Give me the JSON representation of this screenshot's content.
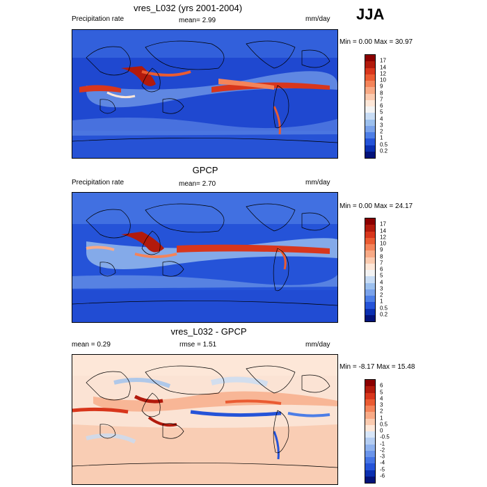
{
  "season": "JJA",
  "panels": [
    {
      "title": "vres_L032 (yrs 2001-2004)",
      "left_label": "Precipitation rate",
      "center_label": "mean=  2.99",
      "units": "mm/day",
      "minmax": "Min =   0.00 Max =  30.97",
      "kind": "abs"
    },
    {
      "title": "GPCP",
      "left_label": "Precipitation rate",
      "center_label": "mean=  2.70",
      "units": "mm/day",
      "minmax": "Min =   0.00 Max =  24.17",
      "kind": "abs"
    },
    {
      "title": "vres_L032 - GPCP",
      "left_label": "mean =   0.29",
      "center_label": "rmse =   1.51",
      "units": "mm/day",
      "minmax": "Min =  -8.17 Max =  15.48",
      "kind": "diff"
    }
  ],
  "colorbars": {
    "abs": {
      "labels": [
        "17",
        "14",
        "12",
        "10",
        "9",
        "8",
        "7",
        "6",
        "5",
        "4",
        "3",
        "2",
        "1",
        "0.5",
        "0.2"
      ],
      "colors": [
        "#8b0000",
        "#b21a0c",
        "#d8361c",
        "#ea5b32",
        "#f4845a",
        "#f8aa86",
        "#fbcbb0",
        "#fde7d8",
        "#f3f3f3",
        "#c8dcf4",
        "#9cc0ee",
        "#7aa2ea",
        "#4d7ee6",
        "#2553d8",
        "#0b2fb0",
        "#03137a"
      ]
    },
    "diff": {
      "labels": [
        "6",
        "5",
        "4",
        "3",
        "2",
        "1",
        "0.5",
        "0",
        "-0.5",
        "-1",
        "-2",
        "-3",
        "-4",
        "-5",
        "-6"
      ],
      "colors": [
        "#8b0000",
        "#b21a0c",
        "#d8361c",
        "#ea5b32",
        "#f4845a",
        "#f8aa86",
        "#fbcbb0",
        "#fde7d8",
        "#d8e6f8",
        "#b4cdf2",
        "#8fb2ee",
        "#6a94ea",
        "#4574e4",
        "#2553d8",
        "#0b2fb0",
        "#03137a"
      ]
    }
  }
}
